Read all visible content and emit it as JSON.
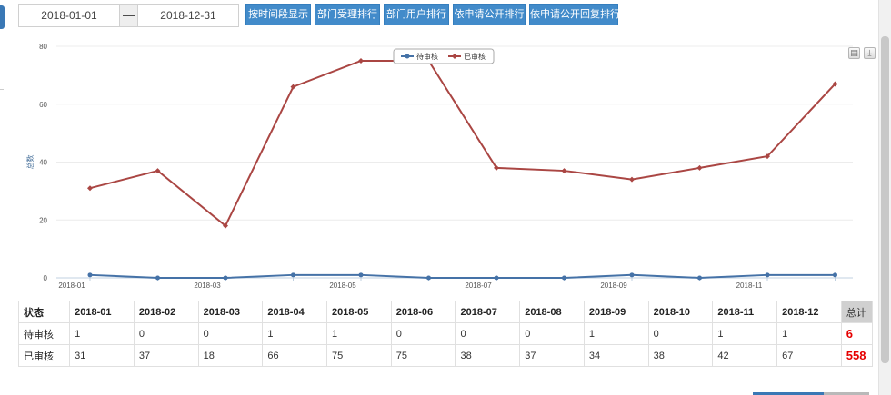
{
  "toolbar": {
    "date_start": "2018-01-01",
    "date_separator": "—",
    "date_end": "2018-12-31",
    "buttons": [
      "按时间段显示",
      "部门受理排行",
      "部门用户排行",
      "依申请公开排行",
      "依申请公开回复排行"
    ]
  },
  "chart_data": {
    "type": "line",
    "categories": [
      "2018-01",
      "2018-02",
      "2018-03",
      "2018-04",
      "2018-05",
      "2018-06",
      "2018-07",
      "2018-08",
      "2018-09",
      "2018-10",
      "2018-11",
      "2018-12"
    ],
    "x_tick_labels": [
      "2018-01",
      "2018-03",
      "2018-05",
      "2018-07",
      "2018-09",
      "2018-11"
    ],
    "ylabel": "总数",
    "ylim": [
      0,
      80
    ],
    "yticks": [
      0,
      20,
      40,
      60,
      80
    ],
    "grid": true,
    "legend_position": "top-center",
    "series": [
      {
        "name": "待审核",
        "color": "#4572a7",
        "values": [
          1,
          0,
          0,
          1,
          1,
          0,
          0,
          0,
          1,
          0,
          1,
          1
        ]
      },
      {
        "name": "已审核",
        "color": "#aa4643",
        "values": [
          31,
          37,
          18,
          66,
          75,
          75,
          38,
          37,
          34,
          38,
          42,
          67
        ]
      }
    ]
  },
  "table": {
    "header_label": "状态",
    "columns": [
      "2018-01",
      "2018-02",
      "2018-03",
      "2018-04",
      "2018-05",
      "2018-06",
      "2018-07",
      "2018-08",
      "2018-09",
      "2018-10",
      "2018-11",
      "2018-12"
    ],
    "total_label": "总计",
    "rows": [
      {
        "label": "待审核",
        "values": [
          "1",
          "0",
          "0",
          "1",
          "1",
          "0",
          "0",
          "0",
          "1",
          "0",
          "1",
          "1"
        ],
        "total": "6"
      },
      {
        "label": "已审核",
        "values": [
          "31",
          "37",
          "18",
          "66",
          "75",
          "75",
          "38",
          "37",
          "34",
          "38",
          "42",
          "67"
        ],
        "total": "558"
      }
    ]
  },
  "icons": {
    "print": "print-icon",
    "download": "download-icon"
  }
}
